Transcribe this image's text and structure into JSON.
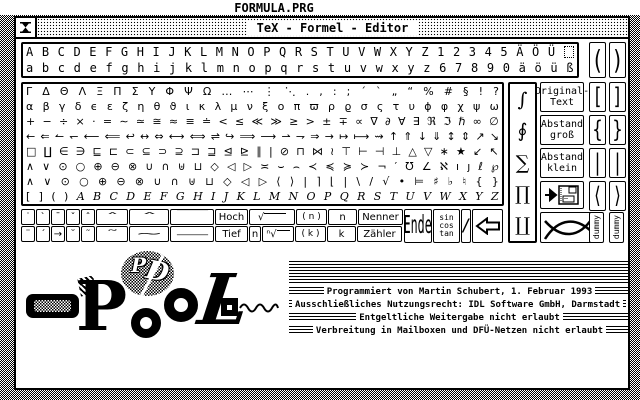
{
  "colors": {
    "fg": "#000000",
    "bg": "#ffffff"
  },
  "menu_bar": {
    "title": "FORMULA.PRG"
  },
  "window": {
    "title": "TeX - Formel - Editor"
  },
  "icons": {
    "close": "hourglass-close-icon",
    "insert": "arrow-to-disk-icon",
    "cross": "crossing-curves-icon",
    "back": "big-left-arrow-icon"
  },
  "letters": {
    "rows": [
      [
        "A",
        "B",
        "C",
        "D",
        "E",
        "F",
        "G",
        "H",
        "I",
        "J",
        "K",
        "L",
        "M",
        "N",
        "O",
        "P",
        "Q",
        "R",
        "S",
        "T",
        "U",
        "V",
        "W",
        "X",
        "Y",
        "Z",
        "1",
        "2",
        "3",
        "4",
        "5",
        "Ä",
        "Ö",
        "Ü",
        ""
      ],
      [
        "a",
        "b",
        "c",
        "d",
        "e",
        "f",
        "g",
        "h",
        "i",
        "j",
        "k",
        "l",
        "m",
        "n",
        "o",
        "p",
        "q",
        "r",
        "s",
        "t",
        "u",
        "v",
        "w",
        "x",
        "y",
        "z",
        "6",
        "7",
        "8",
        "9",
        "0",
        "ä",
        "ö",
        "ü",
        "ß"
      ]
    ]
  },
  "palette": {
    "rows": [
      [
        "Γ",
        "Δ",
        "Θ",
        "Λ",
        "Ξ",
        "Π",
        "Σ",
        "Υ",
        "Φ",
        "Ψ",
        "Ω",
        "…",
        "⋯",
        "⋮",
        "⋱",
        ".",
        ",",
        ":",
        ";",
        "´",
        "`",
        "„",
        "“",
        "%",
        "#",
        "§",
        "!",
        "?"
      ],
      [
        "α",
        "β",
        "γ",
        "δ",
        "ϵ",
        "ε",
        "ζ",
        "η",
        "θ",
        "ϑ",
        "ι",
        "κ",
        "λ",
        "μ",
        "ν",
        "ξ",
        "ο",
        "π",
        "ϖ",
        "ρ",
        "ϱ",
        "σ",
        "ς",
        "τ",
        "υ",
        "ϕ",
        "φ",
        "χ",
        "ψ",
        "ω"
      ],
      [
        "+",
        "−",
        "÷",
        "×",
        "·",
        "=",
        "∼",
        "≃",
        "≅",
        "≈",
        "≡",
        "≐",
        "<",
        "≤",
        "≪",
        "≫",
        "≥",
        ">",
        "±",
        "∓",
        "∝",
        "∇",
        "∂",
        "∀",
        "∃",
        "ℜ",
        "ℑ",
        "ℏ",
        "∞",
        "∅"
      ],
      [
        "←",
        "⇐",
        "↼",
        "↽",
        "⟵",
        "⟸",
        "↩",
        "↔",
        "⇔",
        "⟷",
        "⟺",
        "⇌",
        "↪",
        "⟹",
        "⟶",
        "⇀",
        "⇁",
        "⇒",
        "→",
        "↦",
        "⟼",
        "⇝",
        "↑",
        "⇑",
        "↓",
        "⇓",
        "↕",
        "⇕",
        "↗",
        "↘"
      ],
      [
        "□",
        "∐",
        "∈",
        "∋",
        "⊑",
        "⊏",
        "⊂",
        "⊆",
        "⊃",
        "⊇",
        "⊐",
        "⊒",
        "⊴",
        "⊵",
        "∥",
        "|",
        "⊘",
        "⊓",
        "⋈",
        "≀",
        "⊤",
        "⊢",
        "⊣",
        "⊥",
        "△",
        "▽",
        "∗",
        "★",
        "↙",
        "↖"
      ],
      [
        "∧",
        "∨",
        "⊙",
        "○",
        "⊕",
        "⊖",
        "⊗",
        "∪",
        "∩",
        "⊎",
        "⊔",
        "◇",
        "◁",
        "▷",
        "≍",
        "⌣",
        "⌢",
        "≺",
        "≼",
        "≽",
        "≻",
        "¬",
        "′",
        "℧",
        "∠",
        "ℵ",
        "ı",
        "ȷ",
        "ℓ",
        "℘"
      ],
      [
        "∧",
        "∨",
        "⊙",
        "○",
        "⊕",
        "⊖",
        "⊗",
        "∪",
        "∩",
        "⊎",
        "⊔",
        "◇",
        "◁",
        "▷",
        "⟨",
        "⟩",
        "|",
        "⌉",
        "⌊",
        "|",
        "\\",
        "/",
        "√",
        "•",
        "⊨",
        "♯",
        "♭",
        "♮",
        "{",
        "}"
      ],
      [
        "[",
        "]",
        "(",
        ")",
        "A",
        "B",
        "C",
        "D",
        "E",
        "F",
        "G",
        "H",
        "I",
        "J",
        "K",
        "L",
        "M",
        "N",
        "O",
        "P",
        "Q",
        "R",
        "S",
        "T",
        "U",
        "V",
        "W",
        "X",
        "Y",
        "Z"
      ]
    ]
  },
  "big_ops": [
    "∫",
    "∮",
    "∑",
    "∏",
    "∐"
  ],
  "paren_buttons": {
    "open": "(",
    "close": ")"
  },
  "side_buttons": [
    {
      "lines": [
        "Original-",
        "Text"
      ]
    },
    {
      "lines": [
        "Abstand",
        "groß"
      ]
    },
    {
      "lines": [
        "Abstand",
        "klein"
      ]
    }
  ],
  "pair_buttons": [
    [
      "[",
      "]"
    ],
    [
      "{",
      "}"
    ],
    [
      "|",
      "|"
    ],
    [
      "⟨",
      "⟩"
    ]
  ],
  "dummy_label": "dummy",
  "toolbar": {
    "row_a": [
      "˙",
      "`",
      "¯",
      "ˇ",
      "ˆ",
      "ˆ",
      "ˆ",
      "‾",
      "Hoch",
      "√",
      "( n )",
      "n",
      "Nenner"
    ],
    "row_b": [
      "¨",
      "´",
      "→",
      "˘",
      "˜",
      "˜",
      "~",
      "_",
      "Tief",
      "n",
      "ⁿ√",
      "( k )",
      "k",
      "Zähler"
    ],
    "ende": "Ende",
    "trig": [
      "sin",
      "cos",
      "tan"
    ],
    "slash": "/"
  },
  "footer": {
    "lines": [
      "Programmiert von Martin Schubert, 1. Februar 1993",
      "Ausschließliches Nutzungsrecht: IDL Software GmbH, Darmstadt",
      "Entgeltliche Weitergabe nicht erlaubt",
      "Verbreitung in Mailboxen und DFÜ-Netzen nicht erlaubt"
    ]
  },
  "logo": {
    "badge_p": "P",
    "badge_d": "D",
    "word_p": "P",
    "word_l": "L"
  }
}
